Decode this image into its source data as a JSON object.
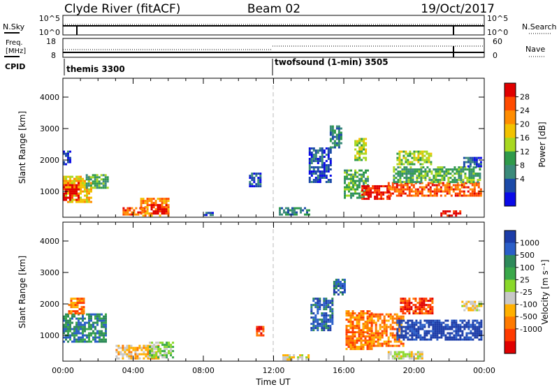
{
  "header": {
    "station": "Clyde River (fitACF)",
    "beam": "Beam 02",
    "date": "19/Oct/2017"
  },
  "params_panel": {
    "nsky_label": "N.Sky",
    "nsearch_label": "N.Search",
    "freq_label_1": "Freq.",
    "freq_label_2": "[MHz]",
    "nave_label": "Nave",
    "cpid_label": "CPID",
    "noise_ticks_left": [
      "10^5",
      "10^0"
    ],
    "noise_ticks_right": [
      "10^5",
      "10^0"
    ],
    "freq_ticks": [
      "18",
      "8"
    ],
    "nave_ticks": [
      "60",
      "0"
    ],
    "cpid_segments": [
      {
        "label": "themis 3300",
        "start_hour": 0.0,
        "end_hour": 12.0
      },
      {
        "label": "twofsound (1-min) 3505",
        "start_hour": 12.0,
        "end_hour": 24.0
      }
    ]
  },
  "chart_data": [
    {
      "type": "heatmap",
      "name": "power",
      "ylabel": "Slant Range [km]",
      "xlim": [
        0,
        24
      ],
      "ylim": [
        180,
        4600
      ],
      "yticks": [
        1000,
        2000,
        3000,
        4000
      ],
      "colorbar": {
        "label": "Power [dB]",
        "ticks": [
          "28",
          "24",
          "20",
          "16",
          "12",
          "8",
          "4"
        ],
        "colors": [
          "#e00000",
          "#ff4a00",
          "#ff8c00",
          "#f2c200",
          "#a8d820",
          "#2f9a4a",
          "#3a8a7a",
          "#1c4aa8",
          "#0a0ae8"
        ]
      },
      "regions": [
        {
          "x0": 0.0,
          "x1": 1.6,
          "y0": 700,
          "y1": 1500,
          "v": 3
        },
        {
          "x0": 0.0,
          "x1": 0.9,
          "y0": 750,
          "y1": 1300,
          "v": 0
        },
        {
          "x0": 1.3,
          "x1": 2.6,
          "y0": 1150,
          "y1": 1550,
          "v": 5
        },
        {
          "x0": 0.0,
          "x1": 0.4,
          "y0": 1900,
          "y1": 2300,
          "v": 7
        },
        {
          "x0": 3.4,
          "x1": 4.6,
          "y0": 250,
          "y1": 500,
          "v": 1
        },
        {
          "x0": 4.4,
          "x1": 6.0,
          "y0": 250,
          "y1": 800,
          "v": 2
        },
        {
          "x0": 5.0,
          "x1": 5.9,
          "y0": 300,
          "y1": 600,
          "v": 0
        },
        {
          "x0": 10.6,
          "x1": 11.3,
          "y0": 1200,
          "y1": 1600,
          "v": 7
        },
        {
          "x0": 12.3,
          "x1": 14.0,
          "y0": 250,
          "y1": 500,
          "v": 6
        },
        {
          "x0": 14.0,
          "x1": 15.2,
          "y0": 1300,
          "y1": 2400,
          "v": 7
        },
        {
          "x0": 15.2,
          "x1": 15.8,
          "y0": 2400,
          "y1": 3100,
          "v": 6
        },
        {
          "x0": 16.0,
          "x1": 17.4,
          "y0": 800,
          "y1": 1700,
          "v": 5
        },
        {
          "x0": 16.6,
          "x1": 17.3,
          "y0": 2000,
          "y1": 2700,
          "v": 4
        },
        {
          "x0": 17.0,
          "x1": 18.6,
          "y0": 800,
          "y1": 1200,
          "v": 0
        },
        {
          "x0": 18.5,
          "x1": 23.8,
          "y0": 850,
          "y1": 1300,
          "v": 1
        },
        {
          "x0": 18.8,
          "x1": 23.8,
          "y0": 1300,
          "y1": 1800,
          "v": 5
        },
        {
          "x0": 19.0,
          "x1": 21.0,
          "y0": 1900,
          "y1": 2300,
          "v": 4
        },
        {
          "x0": 22.8,
          "x1": 23.8,
          "y0": 1800,
          "y1": 2100,
          "v": 7
        },
        {
          "x0": 21.5,
          "x1": 22.6,
          "y0": 250,
          "y1": 400,
          "v": 0
        },
        {
          "x0": 8.0,
          "x1": 8.5,
          "y0": 250,
          "y1": 350,
          "v": 7
        }
      ]
    },
    {
      "type": "heatmap",
      "name": "velocity",
      "xlabel": "Time UT",
      "ylabel": "Slant Range [km]",
      "xlim": [
        0,
        24
      ],
      "ylim": [
        180,
        4600
      ],
      "yticks": [
        1000,
        2000,
        3000,
        4000
      ],
      "xticks": [
        "00:00",
        "04:00",
        "08:00",
        "12:00",
        "16:00",
        "20:00",
        "00:00"
      ],
      "colorbar": {
        "label": "Velocity [m s⁻¹]",
        "ticks": [
          "1000",
          "500",
          "100",
          "25",
          "-25",
          "-100",
          "-500",
          "-1000"
        ],
        "colors": [
          "#1c3ca8",
          "#2a5ec8",
          "#2e8a5a",
          "#3aa84a",
          "#8ad82a",
          "#c8c8c8",
          "#ffb000",
          "#ff7a00",
          "#ff3a00",
          "#e00000"
        ]
      },
      "regions": [
        {
          "x0": 0.0,
          "x1": 2.4,
          "y0": 800,
          "y1": 1700,
          "v": 2
        },
        {
          "x0": 0.3,
          "x1": 1.2,
          "y0": 1700,
          "y1": 2200,
          "v": 7
        },
        {
          "x0": 3.0,
          "x1": 5.4,
          "y0": 250,
          "y1": 700,
          "v": 6
        },
        {
          "x0": 4.9,
          "x1": 6.3,
          "y0": 300,
          "y1": 800,
          "v": 4
        },
        {
          "x0": 12.5,
          "x1": 14.0,
          "y0": 250,
          "y1": 400,
          "v": 5
        },
        {
          "x0": 11.0,
          "x1": 11.4,
          "y0": 1000,
          "y1": 1300,
          "v": 8
        },
        {
          "x0": 14.1,
          "x1": 15.4,
          "y0": 1200,
          "y1": 2200,
          "v": 1
        },
        {
          "x0": 15.4,
          "x1": 16.0,
          "y0": 2300,
          "y1": 2800,
          "v": 1
        },
        {
          "x0": 16.1,
          "x1": 17.6,
          "y0": 600,
          "y1": 1800,
          "v": 7
        },
        {
          "x0": 17.3,
          "x1": 19.4,
          "y0": 700,
          "y1": 1700,
          "v": 7
        },
        {
          "x0": 19.2,
          "x1": 21.0,
          "y0": 1700,
          "y1": 2200,
          "v": 8
        },
        {
          "x0": 19.0,
          "x1": 23.8,
          "y0": 900,
          "y1": 1500,
          "v": 0
        },
        {
          "x0": 22.7,
          "x1": 23.8,
          "y0": 1800,
          "y1": 2100,
          "v": 5
        },
        {
          "x0": 18.5,
          "x1": 20.5,
          "y0": 300,
          "y1": 500,
          "v": 5
        }
      ]
    }
  ]
}
